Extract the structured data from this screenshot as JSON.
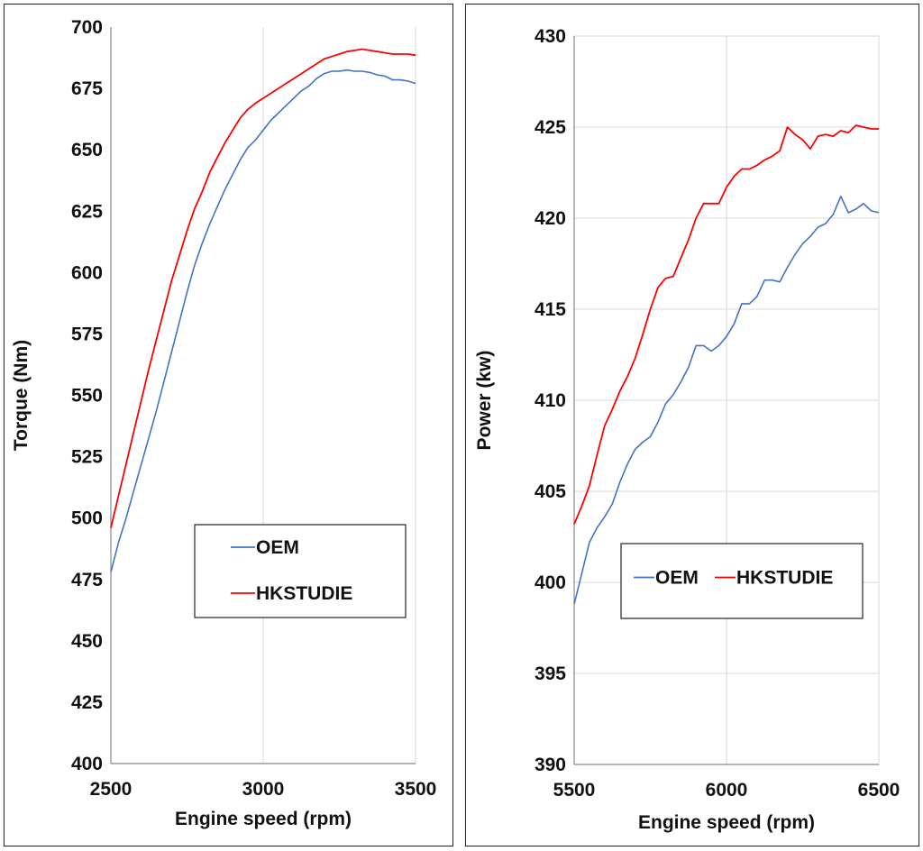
{
  "chart_data": [
    {
      "type": "line",
      "title": "",
      "xlabel": "Engine speed (rpm)",
      "ylabel": "Torque (Nm)",
      "xlim": [
        2500,
        3500
      ],
      "ylim": [
        400,
        700
      ],
      "xticks": [
        2500,
        3000,
        3500
      ],
      "yticks": [
        400,
        425,
        450,
        475,
        500,
        525,
        550,
        575,
        600,
        625,
        650,
        675,
        700
      ],
      "grid": "vertical",
      "legend": {
        "placement": "bottom-right",
        "layout": "vertical",
        "boxed": true
      },
      "series": [
        {
          "name": "OEM",
          "color": "#4472C4",
          "x": [
            2500,
            2525,
            2550,
            2575,
            2600,
            2625,
            2650,
            2675,
            2700,
            2725,
            2750,
            2775,
            2800,
            2825,
            2850,
            2875,
            2900,
            2925,
            2950,
            2975,
            3000,
            3025,
            3050,
            3075,
            3100,
            3125,
            3150,
            3175,
            3200,
            3225,
            3250,
            3275,
            3300,
            3325,
            3350,
            3375,
            3400,
            3425,
            3450,
            3475,
            3500
          ],
          "y": [
            478,
            490,
            500,
            511,
            522,
            533,
            544,
            556,
            568,
            580,
            592,
            603,
            612,
            620,
            627,
            634,
            640,
            646,
            651,
            654,
            658,
            662,
            665,
            668,
            671,
            674,
            676,
            679,
            681,
            682,
            682,
            682.5,
            682,
            682,
            681.5,
            680.5,
            680,
            678.5,
            678.5,
            678,
            677
          ]
        },
        {
          "name": "HKSTUDIE",
          "color": "#FF0000",
          "x": [
            2500,
            2525,
            2550,
            2575,
            2600,
            2625,
            2650,
            2675,
            2700,
            2725,
            2750,
            2775,
            2800,
            2825,
            2850,
            2875,
            2900,
            2925,
            2950,
            2975,
            3000,
            3025,
            3050,
            3075,
            3100,
            3125,
            3150,
            3175,
            3200,
            3225,
            3250,
            3275,
            3300,
            3325,
            3350,
            3375,
            3400,
            3425,
            3450,
            3475,
            3500
          ],
          "y": [
            496,
            509,
            522,
            535,
            548,
            561,
            573,
            585,
            597,
            607,
            617,
            626,
            633,
            641,
            647,
            653,
            658,
            663,
            666.5,
            669,
            671,
            673,
            675,
            677,
            679,
            681,
            683,
            685,
            687,
            688,
            689,
            690,
            690.5,
            691,
            690.5,
            690,
            689.5,
            689,
            689,
            689,
            688.5
          ]
        }
      ]
    },
    {
      "type": "line",
      "title": "",
      "xlabel": "Engine speed (rpm)",
      "ylabel": "Power (kw)",
      "xlim": [
        5500,
        6500
      ],
      "ylim": [
        390,
        430
      ],
      "xticks": [
        5500,
        6000,
        6500
      ],
      "yticks": [
        390,
        395,
        400,
        405,
        410,
        415,
        420,
        425,
        430
      ],
      "grid": "both",
      "legend": {
        "placement": "bottom-right",
        "layout": "horizontal",
        "boxed": true
      },
      "series": [
        {
          "name": "OEM",
          "color": "#4472C4",
          "x": [
            5500,
            5525,
            5550,
            5575,
            5600,
            5625,
            5650,
            5675,
            5700,
            5725,
            5750,
            5775,
            5800,
            5825,
            5850,
            5875,
            5900,
            5925,
            5950,
            5975,
            6000,
            6025,
            6050,
            6075,
            6100,
            6125,
            6150,
            6175,
            6200,
            6225,
            6250,
            6275,
            6300,
            6325,
            6350,
            6375,
            6400,
            6425,
            6450,
            6475,
            6500
          ],
          "y": [
            398.8,
            400.5,
            402.2,
            403,
            403.6,
            404.3,
            405.5,
            406.5,
            407.3,
            407.7,
            408,
            408.8,
            409.8,
            410.3,
            411,
            411.8,
            413,
            413,
            412.7,
            413,
            413.5,
            414.2,
            415.3,
            415.3,
            415.7,
            416.6,
            416.6,
            416.5,
            417.3,
            418,
            418.6,
            419,
            419.5,
            419.7,
            420.2,
            421.2,
            420.3,
            420.5,
            420.8,
            420.4,
            420.3
          ]
        },
        {
          "name": "HKSTUDIE",
          "color": "#FF0000",
          "x": [
            5500,
            5525,
            5550,
            5575,
            5600,
            5625,
            5650,
            5675,
            5700,
            5725,
            5750,
            5775,
            5800,
            5825,
            5850,
            5875,
            5900,
            5925,
            5950,
            5975,
            6000,
            6025,
            6050,
            6075,
            6100,
            6125,
            6150,
            6175,
            6200,
            6225,
            6250,
            6275,
            6300,
            6325,
            6350,
            6375,
            6400,
            6425,
            6450,
            6475,
            6500
          ],
          "y": [
            403.2,
            404.2,
            405.3,
            407,
            408.6,
            409.5,
            410.5,
            411.3,
            412.3,
            413.6,
            415,
            416.2,
            416.7,
            416.8,
            417.8,
            418.8,
            420,
            420.8,
            420.8,
            420.8,
            421.7,
            422.3,
            422.7,
            422.7,
            422.9,
            423.2,
            423.4,
            423.7,
            425,
            424.6,
            424.3,
            423.8,
            424.5,
            424.6,
            424.5,
            424.8,
            424.7,
            425.1,
            425,
            424.9,
            424.9
          ]
        }
      ]
    }
  ]
}
